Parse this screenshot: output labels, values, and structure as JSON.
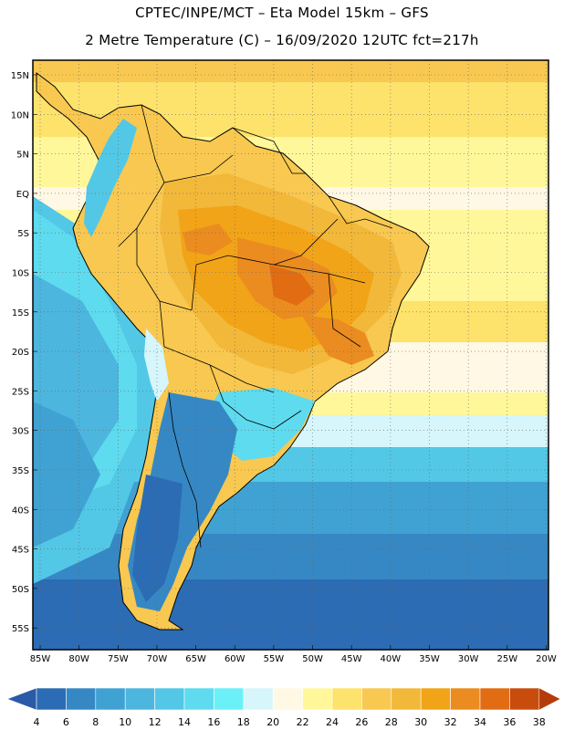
{
  "title_line1": "CPTEC/INPE/MCT –  Eta Model 15km – GFS",
  "title_line2": "2 Metre Temperature (C) – 16/09/2020 12UTC fct=217h",
  "lat_labels": [
    "15N",
    "10N",
    "5N",
    "EQ",
    "5S",
    "10S",
    "15S",
    "20S",
    "25S",
    "30S",
    "35S",
    "40S",
    "45S",
    "50S",
    "55S"
  ],
  "lon_labels": [
    "85W",
    "80W",
    "75W",
    "70W",
    "65W",
    "60W",
    "55W",
    "50W",
    "45W",
    "40W",
    "35W",
    "30W",
    "25W",
    "20W"
  ],
  "colorbar": {
    "levels": [
      "4",
      "6",
      "8",
      "10",
      "12",
      "14",
      "16",
      "18",
      "20",
      "22",
      "24",
      "26",
      "28",
      "30",
      "32",
      "34",
      "36",
      "38"
    ],
    "colors": [
      "#2c6cb4",
      "#3688c4",
      "#40a2d2",
      "#4cb6de",
      "#52c8e6",
      "#5edbee",
      "#6cf0f8",
      "#d6f6fc",
      "#fff8e4",
      "#fff79a",
      "#fde26c",
      "#f8c850",
      "#f2b83a",
      "#f2a418",
      "#ea8c20",
      "#e26c12",
      "#c84c0c"
    ],
    "under_color": "#2a5aa8",
    "over_color": "#b43c0a"
  }
}
